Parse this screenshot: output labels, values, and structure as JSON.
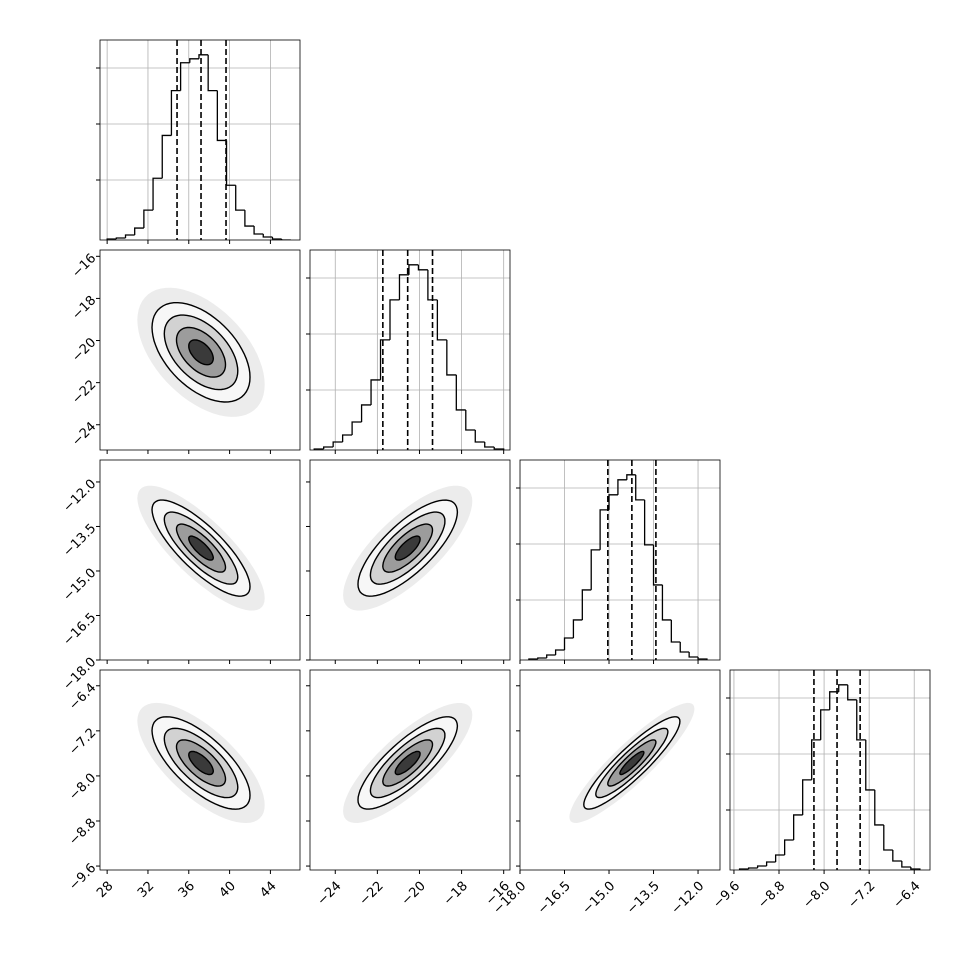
{
  "chart_data": {
    "type": "corner",
    "parameters": [
      {
        "xlim": [
          27.3,
          46.9
        ],
        "xticks": [
          28,
          32,
          36,
          40,
          44
        ],
        "bins": [
          28.0,
          28.9,
          29.8,
          30.7,
          31.6,
          32.5,
          33.4,
          34.3,
          35.2,
          36.1,
          37.0,
          37.9,
          38.8,
          39.7,
          40.6,
          41.5,
          42.4,
          43.3,
          44.2,
          45.1,
          46.0
        ],
        "counts": [
          1,
          2,
          5,
          12,
          30,
          62,
          105,
          150,
          178,
          182,
          186,
          150,
          100,
          55,
          30,
          14,
          6,
          3,
          1,
          0
        ],
        "quantiles": [
          34.85,
          37.2,
          39.65
        ]
      },
      {
        "xlim": [
          -25.2,
          -15.7
        ],
        "xticks": [
          {
            "value": -24,
            "label": "−24"
          },
          {
            "value": -22,
            "label": "−22"
          },
          {
            "value": -20,
            "label": "−20"
          },
          {
            "value": -18,
            "label": "−18"
          },
          {
            "value": -16,
            "label": "−16"
          }
        ],
        "bins": [
          -25.0,
          -24.55,
          -24.1,
          -23.65,
          -23.2,
          -22.75,
          -22.3,
          -21.85,
          -21.4,
          -20.95,
          -20.5,
          -20.05,
          -19.6,
          -19.15,
          -18.7,
          -18.25,
          -17.8,
          -17.35,
          -16.9,
          -16.45,
          -16.0
        ],
        "counts": [
          1,
          3,
          8,
          15,
          28,
          45,
          70,
          110,
          150,
          175,
          185,
          180,
          150,
          110,
          75,
          40,
          20,
          8,
          3,
          1
        ],
        "quantiles": [
          -21.74,
          -20.56,
          -19.38
        ]
      },
      {
        "xlim": [
          -18.0,
          -11.26
        ],
        "xticks": [
          {
            "value": -18.0,
            "label": "−18.0"
          },
          {
            "value": -16.5,
            "label": "−16.5"
          },
          {
            "value": -15.0,
            "label": "−15.0"
          },
          {
            "value": -13.5,
            "label": "−13.5"
          },
          {
            "value": -12.0,
            "label": "−12.0"
          }
        ],
        "bins": [
          -17.7,
          -17.4,
          -17.1,
          -16.8,
          -16.5,
          -16.2,
          -15.9,
          -15.6,
          -15.3,
          -15.0,
          -14.7,
          -14.4,
          -14.1,
          -13.8,
          -13.5,
          -13.2,
          -12.9,
          -12.6,
          -12.3,
          -12.0,
          -11.7
        ],
        "counts": [
          1,
          2,
          5,
          10,
          22,
          40,
          70,
          110,
          150,
          165,
          180,
          185,
          160,
          115,
          75,
          40,
          18,
          8,
          3,
          1
        ],
        "quantiles": [
          -15.04,
          -14.23,
          -13.42
        ]
      },
      {
        "xlim": [
          -9.67,
          -6.12
        ],
        "xticks": [
          {
            "value": -9.6,
            "label": "−9.6"
          },
          {
            "value": -8.8,
            "label": "−8.8"
          },
          {
            "value": -8.0,
            "label": "−8.0"
          },
          {
            "value": -7.2,
            "label": "−7.2"
          },
          {
            "value": -6.4,
            "label": "−6.4"
          }
        ],
        "bins": [
          -9.5,
          -9.34,
          -9.18,
          -9.02,
          -8.86,
          -8.7,
          -8.54,
          -8.38,
          -8.22,
          -8.06,
          -7.9,
          -7.74,
          -7.58,
          -7.42,
          -7.26,
          -7.1,
          -6.94,
          -6.78,
          -6.62,
          -6.46,
          -6.3
        ],
        "counts": [
          1,
          2,
          4,
          8,
          15,
          30,
          55,
          90,
          130,
          160,
          178,
          185,
          170,
          130,
          80,
          45,
          20,
          9,
          3,
          1
        ],
        "quantiles": [
          -8.18,
          -7.77,
          -7.36
        ]
      }
    ],
    "correlations": [
      [],
      [
        -0.5
      ],
      [
        -0.8,
        0.75
      ],
      [
        -0.7,
        0.8,
        0.9
      ]
    ]
  }
}
